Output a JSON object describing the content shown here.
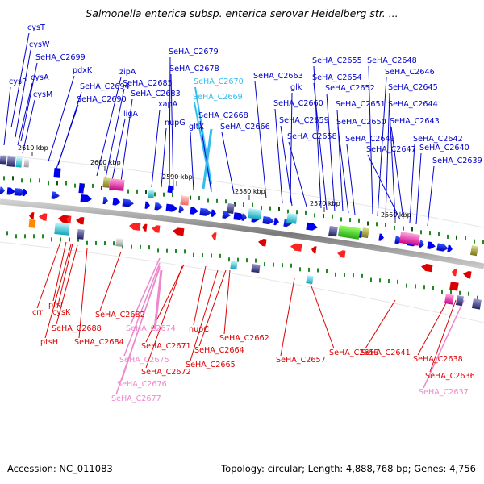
{
  "title": "Salmonella enterica subsp. enterica serovar Heidelberg str. ...",
  "footer": {
    "accession": "Accession: NC_011083",
    "summary": "Topology: circular; Length: 4,888,768 bp; Genes: 4,756"
  },
  "colors": {
    "forward_label": "#0000cc",
    "reverse_label": "#dd0000",
    "highlight_cyan": "#33bbee",
    "highlight_pink": "#ee88cc",
    "backbone": "#8a8a8a"
  },
  "ticks": [
    "2610 kbp",
    "2600 kbp",
    "2590 kbp",
    "2580 kbp",
    "2570 kbp",
    "2560 kbp"
  ],
  "top_labels": [
    {
      "text": "cysT",
      "color": "blue"
    },
    {
      "text": "cysW",
      "color": "blue"
    },
    {
      "text": "SeHA_C2699",
      "color": "blue"
    },
    {
      "text": "pdxK",
      "color": "blue"
    },
    {
      "text": "cysP",
      "color": "blue"
    },
    {
      "text": "cysA",
      "color": "blue"
    },
    {
      "text": "SeHA_C2694",
      "color": "blue"
    },
    {
      "text": "cysM",
      "color": "blue"
    },
    {
      "text": "SeHA_C2690",
      "color": "blue"
    },
    {
      "text": "zipA",
      "color": "blue"
    },
    {
      "text": "SeHA_C2685",
      "color": "blue"
    },
    {
      "text": "SeHA_C2683",
      "color": "blue"
    },
    {
      "text": "ligA",
      "color": "blue"
    },
    {
      "text": "xapA",
      "color": "blue"
    },
    {
      "text": "nupG",
      "color": "blue"
    },
    {
      "text": "SeHA_C2679",
      "color": "blue"
    },
    {
      "text": "SeHA_C2678",
      "color": "blue"
    },
    {
      "text": "SeHA_C2670",
      "color": "cyan"
    },
    {
      "text": "SeHA_C2669",
      "color": "cyan"
    },
    {
      "text": "gltX",
      "color": "blue"
    },
    {
      "text": "SeHA_C2668",
      "color": "blue"
    },
    {
      "text": "SeHA_C2666",
      "color": "blue"
    },
    {
      "text": "SeHA_C2663",
      "color": "blue"
    },
    {
      "text": "glk",
      "color": "blue"
    },
    {
      "text": "SeHA_C2660",
      "color": "blue"
    },
    {
      "text": "SeHA_C2659",
      "color": "blue"
    },
    {
      "text": "SeHA_C2658",
      "color": "blue"
    },
    {
      "text": "SeHA_C2655",
      "color": "blue"
    },
    {
      "text": "SeHA_C2654",
      "color": "blue"
    },
    {
      "text": "SeHA_C2652",
      "color": "blue"
    },
    {
      "text": "SeHA_C2651",
      "color": "blue"
    },
    {
      "text": "SeHA_C2650",
      "color": "blue"
    },
    {
      "text": "SeHA_C2649",
      "color": "blue"
    },
    {
      "text": "SeHA_C2648",
      "color": "blue"
    },
    {
      "text": "SeHA_C2646",
      "color": "blue"
    },
    {
      "text": "SeHA_C2645",
      "color": "blue"
    },
    {
      "text": "SeHA_C2644",
      "color": "blue"
    },
    {
      "text": "SeHA_C2643",
      "color": "blue"
    },
    {
      "text": "SeHA_C2647",
      "color": "blue"
    },
    {
      "text": "SeHA_C2642",
      "color": "blue"
    },
    {
      "text": "SeHA_C2640",
      "color": "blue"
    },
    {
      "text": "SeHA_C2639",
      "color": "blue"
    }
  ],
  "bottom_labels": [
    {
      "text": "ptsI",
      "color": "red"
    },
    {
      "text": "crr",
      "color": "red"
    },
    {
      "text": "cysK",
      "color": "red"
    },
    {
      "text": "SeHA_C2688",
      "color": "red"
    },
    {
      "text": "ptsH",
      "color": "red"
    },
    {
      "text": "SeHA_C2684",
      "color": "red"
    },
    {
      "text": "SeHA_C2682",
      "color": "red"
    },
    {
      "text": "SeHA_C2674",
      "color": "pink"
    },
    {
      "text": "nupC",
      "color": "red"
    },
    {
      "text": "SeHA_C2671",
      "color": "red"
    },
    {
      "text": "SeHA_C2675",
      "color": "pink"
    },
    {
      "text": "SeHA_C2672",
      "color": "red"
    },
    {
      "text": "SeHA_C2676",
      "color": "pink"
    },
    {
      "text": "SeHA_C2677",
      "color": "pink"
    },
    {
      "text": "SeHA_C2662",
      "color": "red"
    },
    {
      "text": "SeHA_C2664",
      "color": "red"
    },
    {
      "text": "SeHA_C2665",
      "color": "red"
    },
    {
      "text": "SeHA_C2657",
      "color": "red"
    },
    {
      "text": "SeHA_C2653",
      "color": "red"
    },
    {
      "text": "SeHA_C2641",
      "color": "red"
    },
    {
      "text": "SeHA_C2638",
      "color": "red"
    },
    {
      "text": "SeHA_C2636",
      "color": "red"
    },
    {
      "text": "SeHA_C2637",
      "color": "pink"
    }
  ]
}
